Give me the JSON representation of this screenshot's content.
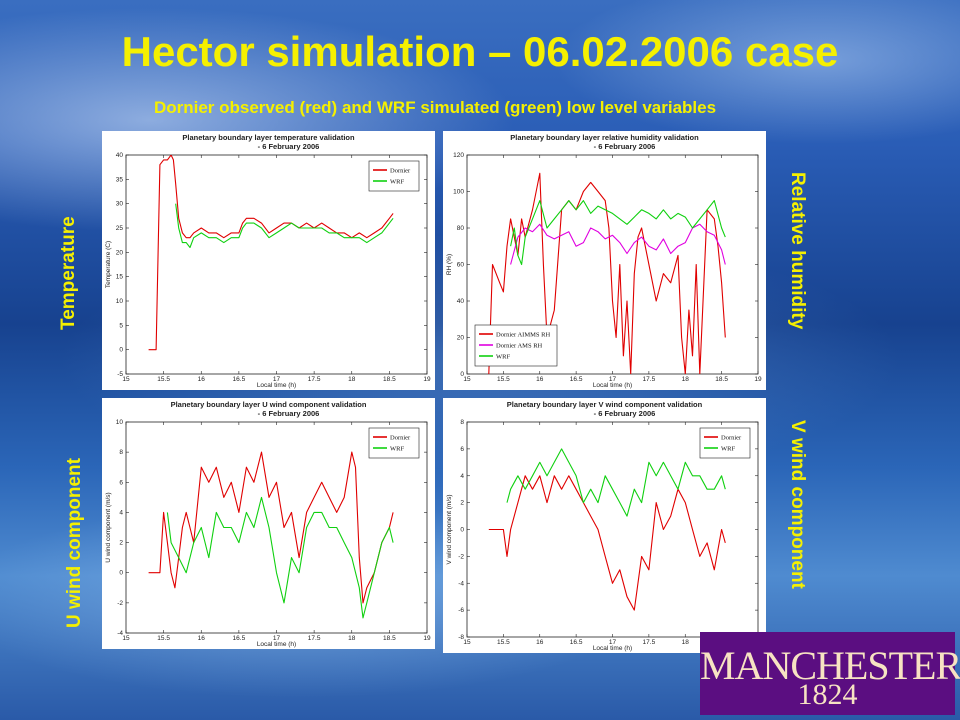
{
  "slide": {
    "title": "Hector simulation – 06.02.2006 case",
    "subtitle": "Dornier observed (red) and WRF simulated (green) low level variables",
    "side_labels": {
      "temperature": "Temperature",
      "relative_humidity": "Relative humidity",
      "u_wind": "U wind component",
      "v_wind": "V wind component"
    },
    "logo": {
      "wordmark": "MANCHESTER",
      "year": "1824"
    }
  },
  "colors": {
    "title": "#f5f000",
    "dornier": "#e00000",
    "wrf": "#10d010",
    "ams": "#e000e0",
    "logo_bg": "#5b0e81"
  },
  "chart_data": [
    {
      "type": "line",
      "title": "Planetary boundary layer temperature validation",
      "subtitle": "- 6 February 2006",
      "xlabel": "Local time (h)",
      "ylabel": "Temperature (C)",
      "xlim": [
        15,
        19
      ],
      "ylim": [
        -5,
        40
      ],
      "xticks": [
        15,
        15.5,
        16,
        16.5,
        17,
        17.5,
        18,
        18.5,
        19
      ],
      "yticks": [
        -5,
        0,
        5,
        10,
        15,
        20,
        25,
        30,
        35,
        40
      ],
      "legend": "top-right",
      "series": [
        {
          "name": "Dornier",
          "color": "#e00000",
          "x": [
            15.3,
            15.4,
            15.42,
            15.45,
            15.5,
            15.55,
            15.6,
            15.63,
            15.66,
            15.7,
            15.75,
            15.8,
            15.85,
            15.9,
            16.0,
            16.1,
            16.2,
            16.3,
            16.4,
            16.5,
            16.55,
            16.6,
            16.7,
            16.8,
            16.9,
            17.0,
            17.1,
            17.2,
            17.3,
            17.4,
            17.5,
            17.6,
            17.7,
            17.8,
            17.9,
            18.0,
            18.1,
            18.2,
            18.3,
            18.4,
            18.5,
            18.55
          ],
          "y": [
            0,
            0,
            15,
            38,
            39,
            39,
            40,
            39,
            34,
            27,
            24,
            23,
            23,
            24,
            25,
            24,
            24,
            23,
            24,
            24,
            26,
            27,
            27,
            26,
            24,
            25,
            26,
            26,
            25,
            26,
            25,
            26,
            25,
            24,
            24,
            23,
            24,
            23,
            24,
            25,
            27,
            28
          ]
        },
        {
          "name": "WRF",
          "color": "#10d010",
          "x": [
            15.66,
            15.7,
            15.75,
            15.8,
            15.85,
            15.9,
            16.0,
            16.1,
            16.2,
            16.3,
            16.4,
            16.5,
            16.55,
            16.6,
            16.7,
            16.8,
            16.9,
            17.0,
            17.1,
            17.2,
            17.3,
            17.4,
            17.5,
            17.6,
            17.7,
            17.8,
            17.9,
            18.0,
            18.1,
            18.2,
            18.3,
            18.4,
            18.5,
            18.55
          ],
          "y": [
            30,
            25,
            22,
            22,
            21,
            23,
            24,
            23,
            23,
            22,
            23,
            23,
            25,
            26,
            26,
            25,
            23,
            24,
            25,
            26,
            25,
            25,
            25,
            25,
            24,
            24,
            23,
            23,
            23,
            22,
            23,
            24,
            26,
            27
          ]
        }
      ]
    },
    {
      "type": "line",
      "title": "Planetary boundary layer relative humidity validation",
      "subtitle": "- 6 February 2006",
      "xlabel": "Local time (h)",
      "ylabel": "RH (%)",
      "xlim": [
        15,
        19
      ],
      "ylim": [
        0,
        120
      ],
      "xticks": [
        15,
        15.5,
        16,
        16.5,
        17,
        17.5,
        18,
        18.5,
        19
      ],
      "yticks": [
        0,
        20,
        40,
        60,
        80,
        100,
        120
      ],
      "legend": "bottom-left",
      "series": [
        {
          "name": "Dornier AIMMS RH",
          "color": "#e00000",
          "x": [
            15.3,
            15.35,
            15.4,
            15.45,
            15.5,
            15.55,
            15.6,
            15.65,
            15.7,
            15.75,
            15.8,
            15.9,
            16.0,
            16.05,
            16.1,
            16.2,
            16.3,
            16.4,
            16.5,
            16.6,
            16.7,
            16.8,
            16.9,
            16.95,
            17.0,
            17.05,
            17.1,
            17.15,
            17.2,
            17.25,
            17.3,
            17.35,
            17.4,
            17.5,
            17.6,
            17.7,
            17.8,
            17.9,
            17.95,
            18.0,
            18.05,
            18.1,
            18.15,
            18.2,
            18.3,
            18.4,
            18.45,
            18.5,
            18.55
          ],
          "y": [
            0,
            60,
            55,
            50,
            45,
            70,
            85,
            75,
            65,
            85,
            75,
            90,
            110,
            60,
            20,
            35,
            90,
            95,
            90,
            100,
            105,
            100,
            95,
            80,
            40,
            20,
            60,
            10,
            40,
            0,
            55,
            75,
            80,
            60,
            40,
            55,
            50,
            65,
            20,
            0,
            35,
            10,
            60,
            0,
            90,
            85,
            70,
            50,
            20
          ]
        },
        {
          "name": "Dornier AMS RH",
          "color": "#e000e0",
          "x": [
            15.6,
            15.7,
            15.8,
            15.9,
            16.0,
            16.1,
            16.2,
            16.3,
            16.4,
            16.5,
            16.6,
            16.7,
            16.8,
            16.9,
            17.0,
            17.1,
            17.2,
            17.3,
            17.4,
            17.5,
            17.6,
            17.7,
            17.8,
            17.9,
            18.0,
            18.1,
            18.2,
            18.3,
            18.4,
            18.5,
            18.55
          ],
          "y": [
            60,
            75,
            80,
            78,
            82,
            76,
            74,
            76,
            78,
            70,
            72,
            80,
            78,
            74,
            76,
            72,
            66,
            72,
            75,
            70,
            68,
            74,
            66,
            70,
            72,
            80,
            82,
            78,
            76,
            68,
            60
          ]
        },
        {
          "name": "WRF",
          "color": "#10d010",
          "x": [
            15.6,
            15.65,
            15.7,
            15.75,
            15.8,
            15.9,
            16.0,
            16.1,
            16.2,
            16.3,
            16.4,
            16.5,
            16.6,
            16.7,
            16.8,
            16.9,
            17.0,
            17.1,
            17.2,
            17.3,
            17.4,
            17.5,
            17.6,
            17.7,
            17.8,
            17.9,
            18.0,
            18.1,
            18.2,
            18.3,
            18.4,
            18.5,
            18.55
          ],
          "y": [
            70,
            80,
            65,
            60,
            75,
            85,
            95,
            80,
            85,
            90,
            95,
            90,
            95,
            88,
            92,
            90,
            88,
            85,
            82,
            86,
            90,
            88,
            85,
            90,
            85,
            88,
            86,
            80,
            85,
            90,
            95,
            80,
            75
          ]
        }
      ]
    },
    {
      "type": "line",
      "title": "Planetary boundary layer U wind component validation",
      "subtitle": "- 6 February 2006",
      "xlabel": "Local time (h)",
      "ylabel": "U wind component (m/s)",
      "xlim": [
        15,
        19
      ],
      "ylim": [
        -4,
        10
      ],
      "xticks": [
        15,
        15.5,
        16,
        16.5,
        17,
        17.5,
        18,
        18.5,
        19
      ],
      "yticks": [
        -4,
        -2,
        0,
        2,
        4,
        6,
        8,
        10
      ],
      "legend": "top-right",
      "series": [
        {
          "name": "Dornier",
          "color": "#e00000",
          "x": [
            15.3,
            15.45,
            15.5,
            15.55,
            15.6,
            15.65,
            15.7,
            15.75,
            15.8,
            15.9,
            16.0,
            16.1,
            16.2,
            16.3,
            16.4,
            16.5,
            16.6,
            16.7,
            16.8,
            16.9,
            17.0,
            17.1,
            17.2,
            17.3,
            17.4,
            17.5,
            17.6,
            17.7,
            17.8,
            17.9,
            18.0,
            18.05,
            18.1,
            18.15,
            18.2,
            18.3,
            18.4,
            18.5,
            18.55
          ],
          "y": [
            0,
            0,
            4,
            2,
            0,
            -1,
            1,
            3,
            4,
            2,
            7,
            6,
            7,
            5,
            6,
            4,
            7,
            6,
            8,
            5,
            6,
            3,
            4,
            1,
            4,
            5,
            6,
            5,
            4,
            5,
            8,
            7,
            1,
            -2,
            -1,
            0,
            2,
            3,
            4
          ]
        },
        {
          "name": "WRF",
          "color": "#10d010",
          "x": [
            15.55,
            15.6,
            15.7,
            15.8,
            15.9,
            16.0,
            16.1,
            16.2,
            16.3,
            16.4,
            16.5,
            16.6,
            16.7,
            16.8,
            16.9,
            17.0,
            17.1,
            17.2,
            17.3,
            17.4,
            17.5,
            17.6,
            17.7,
            17.8,
            17.9,
            18.0,
            18.1,
            18.15,
            18.2,
            18.3,
            18.4,
            18.5,
            18.55
          ],
          "y": [
            4,
            2,
            1,
            0,
            2,
            3,
            1,
            4,
            3,
            3,
            2,
            4,
            3,
            5,
            3,
            0,
            -2,
            1,
            0,
            3,
            4,
            4,
            3,
            3,
            2,
            1,
            -1,
            -3,
            -2,
            0,
            2,
            3,
            2
          ]
        }
      ]
    },
    {
      "type": "line",
      "title": "Planetary boundary layer V wind component validation",
      "subtitle": "- 6 February 2006",
      "xlabel": "Local time (h)",
      "ylabel": "V wind component (m/s)",
      "xlim": [
        15,
        19
      ],
      "ylim": [
        -8,
        8
      ],
      "xticks": [
        15,
        15.5,
        16,
        16.5,
        17,
        17.5,
        18,
        18.5,
        19
      ],
      "yticks": [
        -8,
        -6,
        -4,
        -2,
        0,
        2,
        4,
        6,
        8
      ],
      "legend": "top-right",
      "series": [
        {
          "name": "Dornier",
          "color": "#e00000",
          "x": [
            15.3,
            15.5,
            15.55,
            15.6,
            15.7,
            15.8,
            15.9,
            16.0,
            16.1,
            16.2,
            16.3,
            16.4,
            16.5,
            16.6,
            16.7,
            16.8,
            16.9,
            17.0,
            17.1,
            17.2,
            17.3,
            17.4,
            17.5,
            17.6,
            17.7,
            17.8,
            17.9,
            18.0,
            18.1,
            18.2,
            18.3,
            18.4,
            18.5,
            18.55
          ],
          "y": [
            0,
            0,
            -2,
            0,
            2,
            4,
            3,
            4,
            2,
            4,
            3,
            4,
            3,
            2,
            1,
            0,
            -2,
            -4,
            -3,
            -5,
            -6,
            -2,
            -3,
            2,
            0,
            1,
            3,
            2,
            0,
            -2,
            -1,
            -3,
            0,
            -1
          ]
        },
        {
          "name": "WRF",
          "color": "#10d010",
          "x": [
            15.55,
            15.6,
            15.7,
            15.8,
            15.9,
            16.0,
            16.1,
            16.2,
            16.3,
            16.4,
            16.5,
            16.6,
            16.7,
            16.8,
            16.9,
            17.0,
            17.1,
            17.2,
            17.3,
            17.4,
            17.5,
            17.6,
            17.7,
            17.8,
            17.9,
            18.0,
            18.1,
            18.2,
            18.3,
            18.4,
            18.5,
            18.55
          ],
          "y": [
            2,
            3,
            4,
            3,
            4,
            5,
            4,
            5,
            6,
            5,
            4,
            2,
            3,
            2,
            4,
            3,
            2,
            1,
            3,
            2,
            5,
            4,
            5,
            4,
            3,
            5,
            4,
            4,
            3,
            3,
            4,
            3
          ]
        }
      ]
    }
  ]
}
